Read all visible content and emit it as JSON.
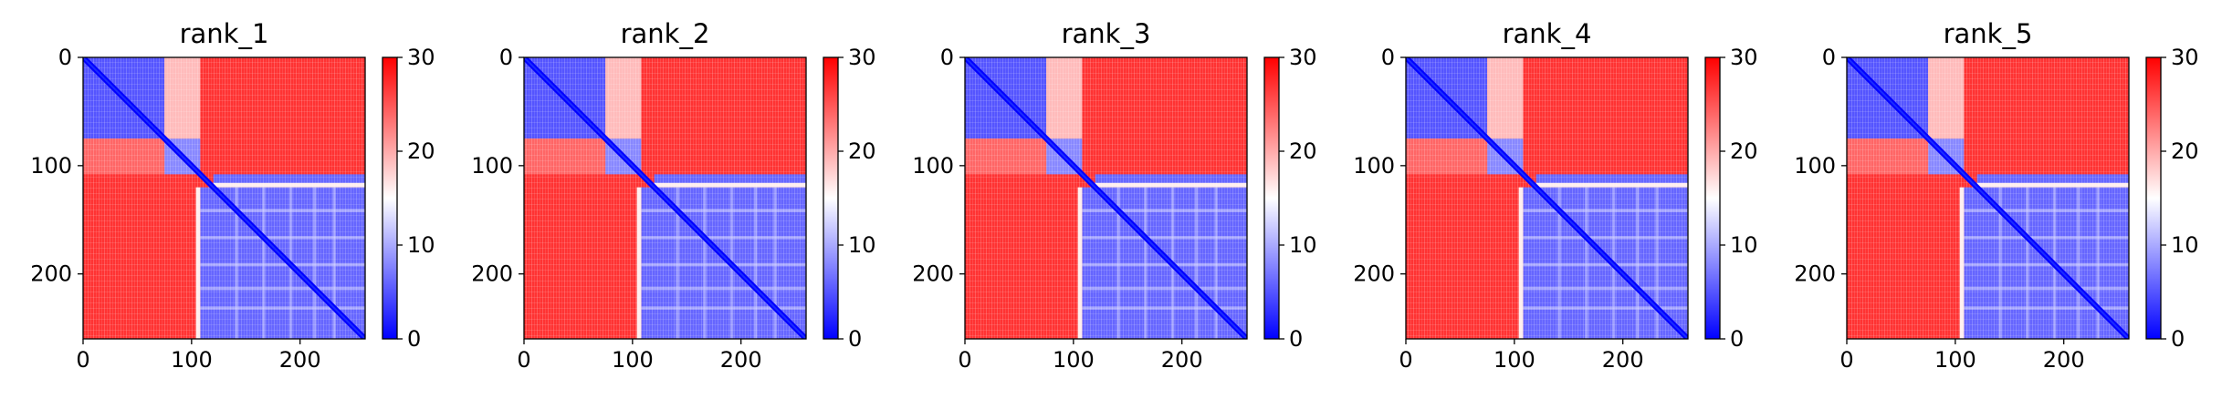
{
  "chart_data": [
    {
      "type": "heatmap",
      "title": "rank_1",
      "xlim": [
        0,
        260
      ],
      "ylim": [
        260,
        0
      ],
      "xticks": [
        0,
        100,
        200
      ],
      "yticks": [
        0,
        100,
        200
      ],
      "colorbar": {
        "range": [
          0,
          30
        ],
        "ticks": [
          0,
          10,
          20,
          30
        ],
        "colormap": "bwr"
      },
      "domains": {
        "boundary_a": 75,
        "boundary_b": 108,
        "boundary_c": 120,
        "end": 260
      },
      "values": [
        [
          "block",
          "0-75 x 0-75",
          5
        ],
        [
          "block",
          "0-75 x 108-260",
          27
        ],
        [
          "block",
          "108-260 x 108-260",
          6
        ],
        [
          "block",
          "0-75 x 75-108",
          18
        ],
        [
          "diagonal",
          "0-260",
          0
        ]
      ]
    },
    {
      "type": "heatmap",
      "title": "rank_2",
      "xlim": [
        0,
        260
      ],
      "ylim": [
        260,
        0
      ],
      "xticks": [
        0,
        100,
        200
      ],
      "yticks": [
        0,
        100,
        200
      ],
      "colorbar": {
        "range": [
          0,
          30
        ],
        "ticks": [
          0,
          10,
          20,
          30
        ],
        "colormap": "bwr"
      },
      "domains": {
        "boundary_a": 75,
        "boundary_b": 108,
        "boundary_c": 120,
        "end": 260
      },
      "values": [
        [
          "block",
          "0-75 x 0-75",
          5
        ],
        [
          "block",
          "0-75 x 108-260",
          27
        ],
        [
          "block",
          "108-260 x 108-260",
          6
        ],
        [
          "block",
          "0-75 x 75-108",
          18
        ],
        [
          "diagonal",
          "0-260",
          0
        ]
      ]
    },
    {
      "type": "heatmap",
      "title": "rank_3",
      "xlim": [
        0,
        260
      ],
      "ylim": [
        260,
        0
      ],
      "xticks": [
        0,
        100,
        200
      ],
      "yticks": [
        0,
        100,
        200
      ],
      "colorbar": {
        "range": [
          0,
          30
        ],
        "ticks": [
          0,
          10,
          20,
          30
        ],
        "colormap": "bwr"
      },
      "domains": {
        "boundary_a": 75,
        "boundary_b": 108,
        "boundary_c": 120,
        "end": 260
      },
      "values": [
        [
          "block",
          "0-75 x 0-75",
          5
        ],
        [
          "block",
          "0-75 x 108-260",
          27
        ],
        [
          "block",
          "108-260 x 108-260",
          6
        ],
        [
          "block",
          "0-75 x 75-108",
          18
        ],
        [
          "diagonal",
          "0-260",
          0
        ]
      ]
    },
    {
      "type": "heatmap",
      "title": "rank_4",
      "xlim": [
        0,
        260
      ],
      "ylim": [
        260,
        0
      ],
      "xticks": [
        0,
        100,
        200
      ],
      "yticks": [
        0,
        100,
        200
      ],
      "colorbar": {
        "range": [
          0,
          30
        ],
        "ticks": [
          0,
          10,
          20,
          30
        ],
        "colormap": "bwr"
      },
      "domains": {
        "boundary_a": 75,
        "boundary_b": 108,
        "boundary_c": 120,
        "end": 260
      },
      "values": [
        [
          "block",
          "0-75 x 0-75",
          5
        ],
        [
          "block",
          "0-75 x 108-260",
          27
        ],
        [
          "block",
          "108-260 x 108-260",
          6
        ],
        [
          "block",
          "0-75 x 75-108",
          18
        ],
        [
          "diagonal",
          "0-260",
          0
        ]
      ]
    },
    {
      "type": "heatmap",
      "title": "rank_5",
      "xlim": [
        0,
        260
      ],
      "ylim": [
        260,
        0
      ],
      "xticks": [
        0,
        100,
        200
      ],
      "yticks": [
        0,
        100,
        200
      ],
      "colorbar": {
        "range": [
          0,
          30
        ],
        "ticks": [
          0,
          10,
          20,
          30
        ],
        "colormap": "bwr"
      },
      "domains": {
        "boundary_a": 75,
        "boundary_b": 108,
        "boundary_c": 120,
        "end": 260
      },
      "values": [
        [
          "block",
          "0-75 x 0-75",
          5
        ],
        [
          "block",
          "0-75 x 108-260",
          27
        ],
        [
          "block",
          "108-260 x 108-260",
          6
        ],
        [
          "block",
          "0-75 x 75-108",
          18
        ],
        [
          "diagonal",
          "0-260",
          0
        ]
      ]
    }
  ]
}
